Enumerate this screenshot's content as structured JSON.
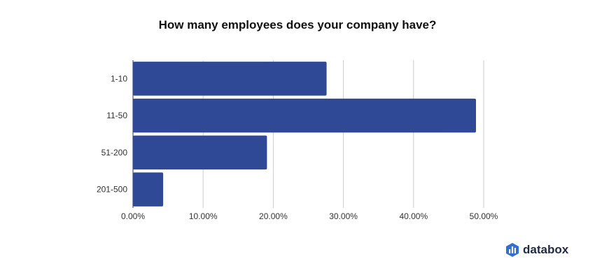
{
  "chart_data": {
    "type": "bar",
    "orientation": "horizontal",
    "title": "How many employees does your company have?",
    "categories": [
      "1-10",
      "11-50",
      "51-200",
      "201-500"
    ],
    "values": [
      27.6,
      48.9,
      19.1,
      4.3
    ],
    "xlim": [
      0,
      50
    ],
    "x_ticks": [
      "0.00%",
      "10.00%",
      "20.00%",
      "30.00%",
      "40.00%",
      "50.00%"
    ],
    "grid": true,
    "xlabel": "",
    "ylabel": "",
    "bar_color": "#2f4996"
  },
  "brand": {
    "name": "databox",
    "logo_icon": "databox-logo-icon"
  }
}
